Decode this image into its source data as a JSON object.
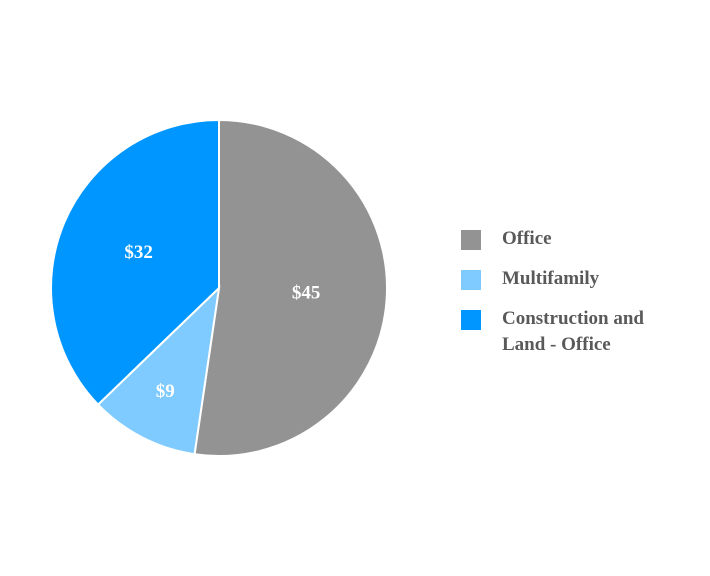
{
  "chart_data": {
    "type": "pie",
    "categories": [
      "Office",
      "Multifamily",
      "Construction and Land - Office"
    ],
    "values": [
      45,
      9,
      32
    ],
    "value_labels": [
      "$45",
      "$9",
      "$32"
    ],
    "colors": [
      "#939393",
      "#7fcaff",
      "#0096ff"
    ],
    "legend": "right"
  }
}
